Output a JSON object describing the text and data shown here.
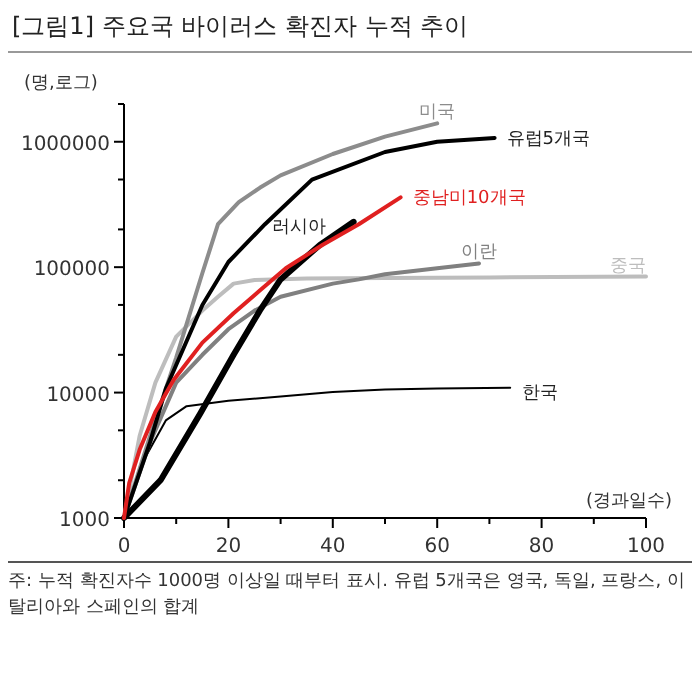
{
  "chart_data": {
    "type": "line",
    "title": "[그림1]  주요국 바이러스 확진자 누적 추이",
    "ylabel": "(명,로그)",
    "xlabel": "(경과일수)",
    "annotations": [
      "주: 누적 확진자수 1000명 이상일 때부터 표시. 유럽 5개국은 영국, 독일, 프랑스, 이탈리아와 스페인의 합계"
    ],
    "log": true,
    "grid": false,
    "xlim": [
      0,
      100
    ],
    "xticks": [
      0,
      {
        "value": 10,
        "label": null
      },
      20,
      {
        "value": 30,
        "label": null
      },
      40,
      {
        "value": 50,
        "label": null
      },
      60,
      {
        "value": 70,
        "label": null
      },
      80,
      {
        "value": 90,
        "label": null
      },
      100
    ],
    "ylim": [
      1000,
      2000000
    ],
    "yticks": [
      1000,
      {
        "value": 2000,
        "label": null
      },
      {
        "value": 5000,
        "label": null
      },
      10000,
      {
        "value": 20000,
        "label": null
      },
      {
        "value": 50000,
        "label": null
      },
      100000,
      {
        "value": 200000,
        "label": null
      },
      {
        "value": 500000,
        "label": null
      },
      1000000,
      {
        "value": 2000000,
        "label": null
      }
    ],
    "series": [
      {
        "name": "중국",
        "color": "#bdbdbd",
        "x": [
          0,
          3,
          6,
          10,
          15,
          18,
          21,
          25,
          35,
          50,
          70,
          100
        ],
        "values": [
          1000,
          4500,
          12000,
          28000,
          45000,
          58000,
          74000,
          79000,
          81000,
          82000,
          83000,
          84000
        ]
      },
      {
        "name": "한국",
        "color": "#000000",
        "x": [
          0,
          4,
          8,
          12,
          20,
          30,
          40,
          50,
          60,
          74
        ],
        "values": [
          1000,
          3000,
          6000,
          7800,
          8600,
          9300,
          10100,
          10600,
          10800,
          10900
        ]
      },
      {
        "name": "이란",
        "color": "#808080",
        "x": [
          0,
          5,
          10,
          15,
          20,
          25,
          30,
          40,
          45,
          50,
          60,
          68
        ],
        "values": [
          1000,
          4000,
          12000,
          20000,
          32000,
          45000,
          58000,
          74000,
          80000,
          88000,
          98000,
          107000
        ]
      },
      {
        "name": "미국",
        "color": "#8c8c8c",
        "x": [
          0,
          5,
          10,
          15,
          18,
          22,
          26,
          30,
          40,
          50,
          60
        ],
        "values": [
          1000,
          4500,
          19000,
          90000,
          220000,
          330000,
          430000,
          540000,
          800000,
          1100000,
          1400000
        ]
      },
      {
        "name": "유럽5개국",
        "color": "#000000",
        "x": [
          0,
          5,
          8,
          15,
          20,
          27,
          36,
          50,
          60,
          71
        ],
        "values": [
          1000,
          4000,
          10700,
          50000,
          110000,
          220000,
          500000,
          830000,
          1000000,
          1070000
        ]
      },
      {
        "name": "러시아",
        "color": "#000000",
        "x": [
          0,
          7,
          14.6,
          21,
          26,
          30,
          37.5,
          44
        ],
        "values": [
          1000,
          2000,
          6800,
          20000,
          45000,
          80000,
          150000,
          230000
        ]
      },
      {
        "name": "중남미10개국",
        "color": "#e02020",
        "x": [
          0,
          1,
          3,
          6,
          9.5,
          15,
          21,
          26,
          31,
          38,
          45,
          53
        ],
        "values": [
          1000,
          1900,
          3500,
          7000,
          12600,
          25000,
          43000,
          65000,
          98000,
          150000,
          220000,
          360000
        ]
      }
    ]
  }
}
